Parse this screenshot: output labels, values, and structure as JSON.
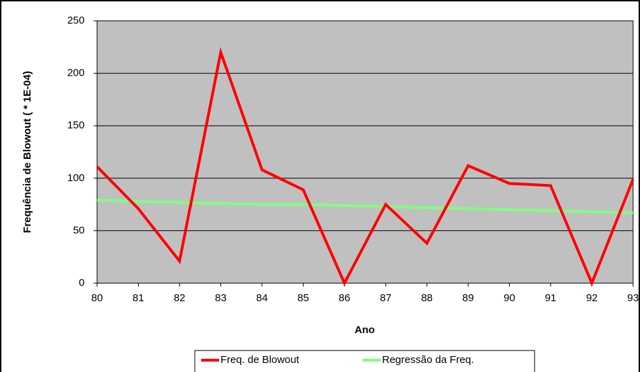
{
  "chart_data": {
    "type": "line",
    "x_label": "Ano",
    "y_label": "Frequência de Blowout ( * 1E-04)",
    "x": [
      80,
      81,
      82,
      83,
      84,
      85,
      86,
      87,
      88,
      89,
      90,
      91,
      92,
      93
    ],
    "series": [
      {
        "name": "Freq. de Blowout",
        "color": "#ff0000",
        "values": [
          111,
          71,
          21,
          220,
          108,
          89,
          0,
          75,
          38,
          112,
          95,
          93,
          0,
          99
        ]
      },
      {
        "name": "Regressão da Freq.",
        "color": "#80ff80",
        "values": [
          79,
          78,
          77,
          76,
          75,
          75,
          74,
          73,
          72,
          71,
          70,
          69,
          68,
          67
        ]
      }
    ],
    "xlim": [
      80,
      93
    ],
    "xticks": [
      80,
      81,
      82,
      83,
      84,
      85,
      86,
      87,
      88,
      89,
      90,
      91,
      92,
      93
    ],
    "ylim": [
      0,
      250
    ],
    "yticks": [
      0,
      50,
      100,
      150,
      200,
      250
    ],
    "grid": true,
    "legend": "bottom",
    "plot_background": "#c0c0c0"
  }
}
